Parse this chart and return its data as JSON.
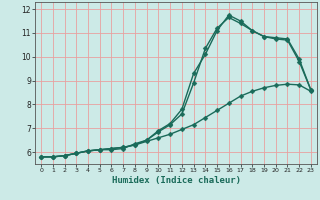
{
  "title": "",
  "xlabel": "Humidex (Indice chaleur)",
  "ylabel": "",
  "xlim": [
    -0.5,
    23.5
  ],
  "ylim": [
    5.5,
    12.3
  ],
  "background_color": "#cceae7",
  "grid_color": "#e8a0a0",
  "line_color": "#1a6b5a",
  "line1_x": [
    0,
    1,
    2,
    3,
    4,
    5,
    6,
    7,
    8,
    9,
    10,
    11,
    12,
    13,
    14,
    15,
    16,
    17,
    18,
    19,
    20,
    21,
    22,
    23
  ],
  "line1_y": [
    5.8,
    5.8,
    5.85,
    5.95,
    6.05,
    6.1,
    6.1,
    6.15,
    6.35,
    6.5,
    6.9,
    7.2,
    7.8,
    9.3,
    10.1,
    11.1,
    11.75,
    11.5,
    11.1,
    10.85,
    10.8,
    10.75,
    9.9,
    8.6
  ],
  "line2_x": [
    0,
    1,
    2,
    3,
    4,
    5,
    6,
    7,
    8,
    9,
    10,
    11,
    12,
    13,
    14,
    15,
    16,
    17,
    18,
    19,
    20,
    21,
    22,
    23
  ],
  "line2_y": [
    5.8,
    5.8,
    5.85,
    5.95,
    6.05,
    6.1,
    6.15,
    6.2,
    6.3,
    6.5,
    6.85,
    7.15,
    7.6,
    8.9,
    10.35,
    11.2,
    11.65,
    11.4,
    11.1,
    10.85,
    10.75,
    10.7,
    9.8,
    8.6
  ],
  "line3_x": [
    0,
    1,
    2,
    3,
    4,
    5,
    6,
    7,
    8,
    9,
    10,
    11,
    12,
    13,
    14,
    15,
    16,
    17,
    18,
    19,
    20,
    21,
    22,
    23
  ],
  "line3_y": [
    5.8,
    5.8,
    5.85,
    5.95,
    6.05,
    6.1,
    6.15,
    6.2,
    6.3,
    6.45,
    6.6,
    6.75,
    6.95,
    7.15,
    7.45,
    7.75,
    8.05,
    8.35,
    8.55,
    8.7,
    8.8,
    8.85,
    8.82,
    8.55
  ],
  "xticks": [
    0,
    1,
    2,
    3,
    4,
    5,
    6,
    7,
    8,
    9,
    10,
    11,
    12,
    13,
    14,
    15,
    16,
    17,
    18,
    19,
    20,
    21,
    22,
    23
  ],
  "yticks": [
    6,
    7,
    8,
    9,
    10,
    11,
    12
  ],
  "marker_size": 2.5,
  "linewidth": 1.0
}
